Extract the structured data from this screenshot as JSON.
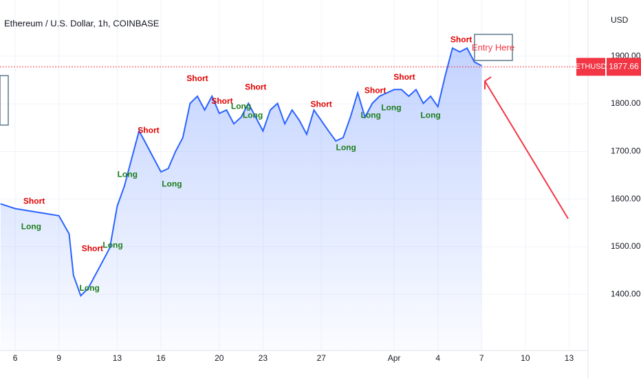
{
  "chart_data": {
    "type": "line",
    "title": "Ethereum / U.S. Dollar, 1h, COINBASE",
    "y_axis_label": "USD",
    "symbol": "ETHUSD",
    "last_price": 1877.66,
    "last_price_label": "1877.66",
    "entry_label": "Entry Here",
    "color": "#2962ff",
    "xlim": [
      -1.04,
      39.3
    ],
    "ylim": [
      1282,
      2018
    ],
    "xticks": [
      {
        "value": 0,
        "label": "6"
      },
      {
        "value": 3,
        "label": "9"
      },
      {
        "value": 7,
        "label": "13"
      },
      {
        "value": 10,
        "label": "16"
      },
      {
        "value": 14,
        "label": "20"
      },
      {
        "value": 17,
        "label": "23"
      },
      {
        "value": 21,
        "label": "27"
      },
      {
        "value": 26,
        "label": "Apr"
      },
      {
        "value": 29,
        "label": "4"
      },
      {
        "value": 32,
        "label": "7"
      },
      {
        "value": 35,
        "label": "10"
      },
      {
        "value": 38,
        "label": "13"
      }
    ],
    "yticks": [
      {
        "value": 1400,
        "label": "1400.00"
      },
      {
        "value": 1500,
        "label": "1500.00"
      },
      {
        "value": 1600,
        "label": "1600.00"
      },
      {
        "value": 1700,
        "label": "1700.00"
      },
      {
        "value": 1800,
        "label": "1800.00"
      },
      {
        "value": 1900,
        "label": "1900.00"
      }
    ],
    "grid": true,
    "x": [
      -1,
      0,
      1,
      2,
      3,
      3.7,
      4,
      4.5,
      5,
      6,
      6.5,
      7,
      7.5,
      8,
      8.5,
      9,
      9.5,
      10,
      10.5,
      11,
      11.5,
      12,
      12.5,
      13,
      13.5,
      14,
      14.5,
      15,
      15.5,
      16,
      16.5,
      17,
      17.5,
      18,
      18.5,
      19,
      19.5,
      20,
      20.5,
      21,
      21.5,
      22,
      22.5,
      23,
      23.5,
      24,
      24.5,
      25,
      25.5,
      26,
      26.5,
      27,
      27.5,
      28,
      28.5,
      29,
      29.5,
      30,
      30.5,
      31,
      31.5,
      32
    ],
    "values": [
      1590,
      1580,
      1575,
      1570,
      1565,
      1527,
      1440,
      1397,
      1412,
      1469,
      1498,
      1585,
      1628,
      1686,
      1743,
      1715,
      1686,
      1657,
      1664,
      1700,
      1729,
      1801,
      1816,
      1787,
      1816,
      1780,
      1787,
      1758,
      1772,
      1801,
      1772,
      1743,
      1787,
      1801,
      1758,
      1787,
      1765,
      1736,
      1787,
      1765,
      1743,
      1722,
      1729,
      1772,
      1823,
      1772,
      1801,
      1816,
      1823,
      1830,
      1830,
      1816,
      1830,
      1801,
      1816,
      1794,
      1859,
      1917,
      1909,
      1917,
      1888,
      1880
    ],
    "annotations": [
      {
        "text": "Short",
        "x": 12.5,
        "y": 1852
      },
      {
        "text": "Short",
        "x": 16.5,
        "y": 1834
      },
      {
        "text": "Short",
        "x": 14.2,
        "y": 1805
      },
      {
        "text": "Short",
        "x": 21,
        "y": 1798
      },
      {
        "text": "Short",
        "x": 24.7,
        "y": 1827
      },
      {
        "text": "Short",
        "x": 26.7,
        "y": 1855
      },
      {
        "text": "Short",
        "x": 30.6,
        "y": 1934
      },
      {
        "text": "Short",
        "x": 9.15,
        "y": 1743
      },
      {
        "text": "Short",
        "x": 5.3,
        "y": 1495
      },
      {
        "text": "Short",
        "x": 1.3,
        "y": 1595
      },
      {
        "text": "Long",
        "x": 10.75,
        "y": 1631
      },
      {
        "text": "Long",
        "x": 22.7,
        "y": 1707
      },
      {
        "text": "Long",
        "x": 28.5,
        "y": 1775
      },
      {
        "text": "Long",
        "x": 5.1,
        "y": 1412
      },
      {
        "text": "Long",
        "x": 1.1,
        "y": 1541
      },
      {
        "text": "Long",
        "x": 7.7,
        "y": 1651
      },
      {
        "text": "Long",
        "x": 6.7,
        "y": 1502
      },
      {
        "text": "Long",
        "x": 16.3,
        "y": 1775
      },
      {
        "text": "Long",
        "x": 24.4,
        "y": 1775
      },
      {
        "text": "Long",
        "x": 25.8,
        "y": 1791
      },
      {
        "text": "Long",
        "x": 15.5,
        "y": 1794
      }
    ]
  }
}
